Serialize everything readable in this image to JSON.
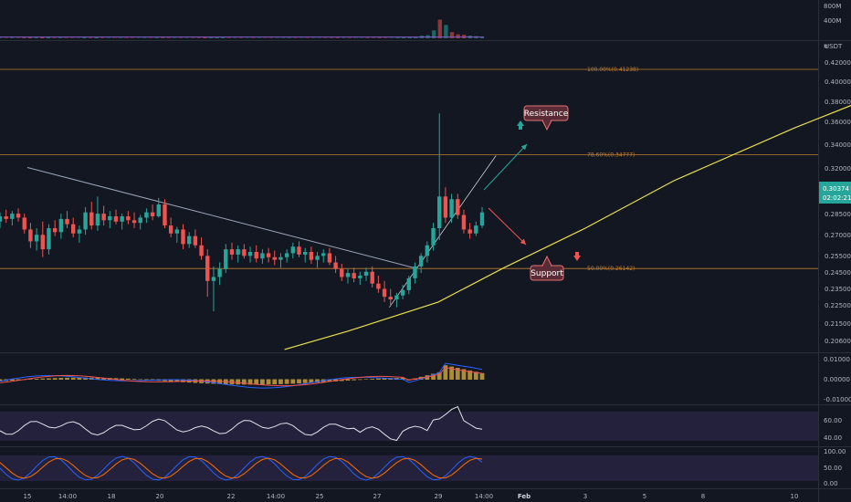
{
  "chart_data": {
    "type": "candlestick",
    "quote_unit": "USDT",
    "price_axis": {
      "min": 0.2,
      "max": 0.432,
      "ticks": [
        "0.42000",
        "0.40000",
        "0.38000",
        "0.36000",
        "0.34000",
        "0.32000",
        "0.30000",
        "0.28500",
        "0.27000",
        "0.25500",
        "0.24500",
        "0.23500",
        "0.22500",
        "0.21500",
        "0.20600"
      ]
    },
    "current_price": "0.30374",
    "countdown": "02:02:21",
    "volume_axis": {
      "max_label": "800M",
      "mid_label": "400M"
    },
    "time_axis": {
      "labels": [
        {
          "text": "15",
          "t": 0
        },
        {
          "text": "14:00",
          "t": 1
        },
        {
          "text": "18",
          "t": 2
        },
        {
          "text": "20",
          "t": 3
        },
        {
          "text": "22",
          "t": 4
        },
        {
          "text": "14:00",
          "t": 5
        },
        {
          "text": "25",
          "t": 6
        },
        {
          "text": "27",
          "t": 7
        },
        {
          "text": "29",
          "t": 8
        },
        {
          "text": "14:00",
          "t": 9
        },
        {
          "text": "Feb",
          "t": 10
        },
        {
          "text": "3",
          "t": 11
        },
        {
          "text": "5",
          "t": 12
        },
        {
          "text": "8",
          "t": 13
        },
        {
          "text": "10",
          "t": 14
        }
      ]
    },
    "fib_levels": [
      {
        "label": "100.00%(0.41238)",
        "value": 0.41238
      },
      {
        "label": "78.60%(0.34777)",
        "value": 0.34777
      },
      {
        "label": "50.00%(0.26142)",
        "value": 0.26142
      }
    ],
    "annotations": {
      "resistance": "Resistance",
      "support": "Support"
    },
    "trendline_descending": [
      {
        "t": 0,
        "v": 0.338
      },
      {
        "t": 7.6,
        "v": 0.262
      }
    ],
    "trendline_ascending": [
      {
        "t": 7.2,
        "v": 0.232
      },
      {
        "t": 9.3,
        "v": 0.347
      }
    ],
    "support_curve": [
      {
        "t": 5.2,
        "v": 0.2
      },
      {
        "t": 6.5,
        "v": 0.214
      },
      {
        "t": 8,
        "v": 0.236
      },
      {
        "t": 9.5,
        "v": 0.262
      },
      {
        "t": 11,
        "v": 0.292
      },
      {
        "t": 12.5,
        "v": 0.328
      },
      {
        "t": 14,
        "v": 0.368
      },
      {
        "t": 14.8,
        "v": 0.39
      }
    ],
    "candles": [
      {
        "o": 0.297,
        "h": 0.304,
        "l": 0.292,
        "c": 0.301
      },
      {
        "o": 0.301,
        "h": 0.306,
        "l": 0.296,
        "c": 0.299
      },
      {
        "o": 0.299,
        "h": 0.305,
        "l": 0.294,
        "c": 0.303
      },
      {
        "o": 0.303,
        "h": 0.307,
        "l": 0.297,
        "c": 0.3
      },
      {
        "o": 0.3,
        "h": 0.303,
        "l": 0.288,
        "c": 0.291
      },
      {
        "o": 0.291,
        "h": 0.296,
        "l": 0.277,
        "c": 0.282
      },
      {
        "o": 0.282,
        "h": 0.292,
        "l": 0.275,
        "c": 0.287
      },
      {
        "o": 0.287,
        "h": 0.297,
        "l": 0.27,
        "c": 0.276
      },
      {
        "o": 0.276,
        "h": 0.295,
        "l": 0.272,
        "c": 0.292
      },
      {
        "o": 0.292,
        "h": 0.298,
        "l": 0.286,
        "c": 0.289
      },
      {
        "o": 0.289,
        "h": 0.303,
        "l": 0.284,
        "c": 0.299
      },
      {
        "o": 0.299,
        "h": 0.305,
        "l": 0.292,
        "c": 0.295
      },
      {
        "o": 0.295,
        "h": 0.3,
        "l": 0.285,
        "c": 0.288
      },
      {
        "o": 0.288,
        "h": 0.294,
        "l": 0.281,
        "c": 0.291
      },
      {
        "o": 0.291,
        "h": 0.308,
        "l": 0.287,
        "c": 0.304
      },
      {
        "o": 0.304,
        "h": 0.312,
        "l": 0.291,
        "c": 0.294
      },
      {
        "o": 0.294,
        "h": 0.316,
        "l": 0.29,
        "c": 0.303
      },
      {
        "o": 0.303,
        "h": 0.309,
        "l": 0.294,
        "c": 0.298
      },
      {
        "o": 0.298,
        "h": 0.305,
        "l": 0.292,
        "c": 0.301
      },
      {
        "o": 0.301,
        "h": 0.306,
        "l": 0.295,
        "c": 0.297
      },
      {
        "o": 0.297,
        "h": 0.303,
        "l": 0.291,
        "c": 0.301
      },
      {
        "o": 0.301,
        "h": 0.305,
        "l": 0.295,
        "c": 0.298
      },
      {
        "o": 0.298,
        "h": 0.304,
        "l": 0.292,
        "c": 0.296
      },
      {
        "o": 0.296,
        "h": 0.302,
        "l": 0.291,
        "c": 0.3
      },
      {
        "o": 0.3,
        "h": 0.307,
        "l": 0.296,
        "c": 0.304
      },
      {
        "o": 0.304,
        "h": 0.31,
        "l": 0.298,
        "c": 0.301
      },
      {
        "o": 0.301,
        "h": 0.315,
        "l": 0.3,
        "c": 0.31
      },
      {
        "o": 0.31,
        "h": 0.314,
        "l": 0.292,
        "c": 0.294
      },
      {
        "o": 0.294,
        "h": 0.3,
        "l": 0.285,
        "c": 0.288
      },
      {
        "o": 0.288,
        "h": 0.293,
        "l": 0.281,
        "c": 0.291
      },
      {
        "o": 0.291,
        "h": 0.295,
        "l": 0.276,
        "c": 0.28
      },
      {
        "o": 0.28,
        "h": 0.289,
        "l": 0.277,
        "c": 0.286
      },
      {
        "o": 0.286,
        "h": 0.291,
        "l": 0.277,
        "c": 0.279
      },
      {
        "o": 0.279,
        "h": 0.285,
        "l": 0.268,
        "c": 0.271
      },
      {
        "o": 0.271,
        "h": 0.276,
        "l": 0.24,
        "c": 0.252
      },
      {
        "o": 0.252,
        "h": 0.263,
        "l": 0.229,
        "c": 0.255
      },
      {
        "o": 0.255,
        "h": 0.266,
        "l": 0.249,
        "c": 0.261
      },
      {
        "o": 0.261,
        "h": 0.28,
        "l": 0.258,
        "c": 0.276
      },
      {
        "o": 0.276,
        "h": 0.281,
        "l": 0.268,
        "c": 0.272
      },
      {
        "o": 0.272,
        "h": 0.279,
        "l": 0.266,
        "c": 0.276
      },
      {
        "o": 0.276,
        "h": 0.28,
        "l": 0.269,
        "c": 0.271
      },
      {
        "o": 0.271,
        "h": 0.278,
        "l": 0.266,
        "c": 0.274
      },
      {
        "o": 0.274,
        "h": 0.279,
        "l": 0.266,
        "c": 0.269
      },
      {
        "o": 0.269,
        "h": 0.276,
        "l": 0.265,
        "c": 0.273
      },
      {
        "o": 0.273,
        "h": 0.277,
        "l": 0.266,
        "c": 0.27
      },
      {
        "o": 0.27,
        "h": 0.275,
        "l": 0.264,
        "c": 0.268
      },
      {
        "o": 0.268,
        "h": 0.273,
        "l": 0.262,
        "c": 0.27
      },
      {
        "o": 0.27,
        "h": 0.276,
        "l": 0.266,
        "c": 0.273
      },
      {
        "o": 0.273,
        "h": 0.281,
        "l": 0.269,
        "c": 0.278
      },
      {
        "o": 0.278,
        "h": 0.282,
        "l": 0.27,
        "c": 0.272
      },
      {
        "o": 0.272,
        "h": 0.277,
        "l": 0.266,
        "c": 0.274
      },
      {
        "o": 0.274,
        "h": 0.278,
        "l": 0.265,
        "c": 0.268
      },
      {
        "o": 0.268,
        "h": 0.274,
        "l": 0.262,
        "c": 0.271
      },
      {
        "o": 0.271,
        "h": 0.276,
        "l": 0.266,
        "c": 0.273
      },
      {
        "o": 0.273,
        "h": 0.277,
        "l": 0.264,
        "c": 0.266
      },
      {
        "o": 0.266,
        "h": 0.271,
        "l": 0.258,
        "c": 0.261
      },
      {
        "o": 0.261,
        "h": 0.265,
        "l": 0.252,
        "c": 0.255
      },
      {
        "o": 0.255,
        "h": 0.261,
        "l": 0.25,
        "c": 0.258
      },
      {
        "o": 0.258,
        "h": 0.262,
        "l": 0.251,
        "c": 0.254
      },
      {
        "o": 0.254,
        "h": 0.259,
        "l": 0.249,
        "c": 0.256
      },
      {
        "o": 0.256,
        "h": 0.262,
        "l": 0.252,
        "c": 0.259
      },
      {
        "o": 0.259,
        "h": 0.263,
        "l": 0.247,
        "c": 0.25
      },
      {
        "o": 0.25,
        "h": 0.256,
        "l": 0.243,
        "c": 0.246
      },
      {
        "o": 0.246,
        "h": 0.252,
        "l": 0.236,
        "c": 0.24
      },
      {
        "o": 0.24,
        "h": 0.246,
        "l": 0.233,
        "c": 0.238
      },
      {
        "o": 0.238,
        "h": 0.243,
        "l": 0.232,
        "c": 0.241
      },
      {
        "o": 0.241,
        "h": 0.249,
        "l": 0.238,
        "c": 0.245
      },
      {
        "o": 0.245,
        "h": 0.256,
        "l": 0.242,
        "c": 0.254
      },
      {
        "o": 0.254,
        "h": 0.266,
        "l": 0.25,
        "c": 0.263
      },
      {
        "o": 0.263,
        "h": 0.273,
        "l": 0.258,
        "c": 0.271
      },
      {
        "o": 0.271,
        "h": 0.282,
        "l": 0.266,
        "c": 0.279
      },
      {
        "o": 0.279,
        "h": 0.296,
        "l": 0.275,
        "c": 0.292
      },
      {
        "o": 0.292,
        "h": 0.379,
        "l": 0.283,
        "c": 0.316
      },
      {
        "o": 0.316,
        "h": 0.323,
        "l": 0.296,
        "c": 0.3
      },
      {
        "o": 0.3,
        "h": 0.318,
        "l": 0.296,
        "c": 0.314
      },
      {
        "o": 0.314,
        "h": 0.318,
        "l": 0.299,
        "c": 0.302
      },
      {
        "o": 0.302,
        "h": 0.306,
        "l": 0.288,
        "c": 0.291
      },
      {
        "o": 0.291,
        "h": 0.296,
        "l": 0.284,
        "c": 0.288
      },
      {
        "o": 0.288,
        "h": 0.297,
        "l": 0.286,
        "c": 0.294
      },
      {
        "o": 0.294,
        "h": 0.308,
        "l": 0.292,
        "c": 0.304
      }
    ],
    "volume": [
      12,
      10,
      14,
      9,
      16,
      22,
      18,
      25,
      20,
      12,
      15,
      11,
      10,
      9,
      18,
      14,
      20,
      12,
      10,
      9,
      11,
      10,
      9,
      8,
      12,
      10,
      15,
      14,
      12,
      10,
      11,
      9,
      10,
      12,
      30,
      42,
      22,
      18,
      12,
      10,
      9,
      8,
      10,
      9,
      8,
      9,
      8,
      10,
      12,
      9,
      8,
      10,
      9,
      8,
      10,
      12,
      14,
      9,
      10,
      9,
      8,
      12,
      10,
      14,
      12,
      10,
      16,
      20,
      24,
      30,
      60,
      70,
      180,
      420,
      300,
      140,
      90,
      80,
      60,
      50,
      40
    ],
    "macd_axis": {
      "ticks": [
        "0.01000",
        "0.00000",
        "-0.01000"
      ]
    },
    "rsi_axis": {
      "ticks": [
        "60.00",
        "40.00"
      ]
    },
    "stoch_axis": {
      "ticks": [
        "100.00",
        "50.00",
        "0.00"
      ]
    }
  }
}
